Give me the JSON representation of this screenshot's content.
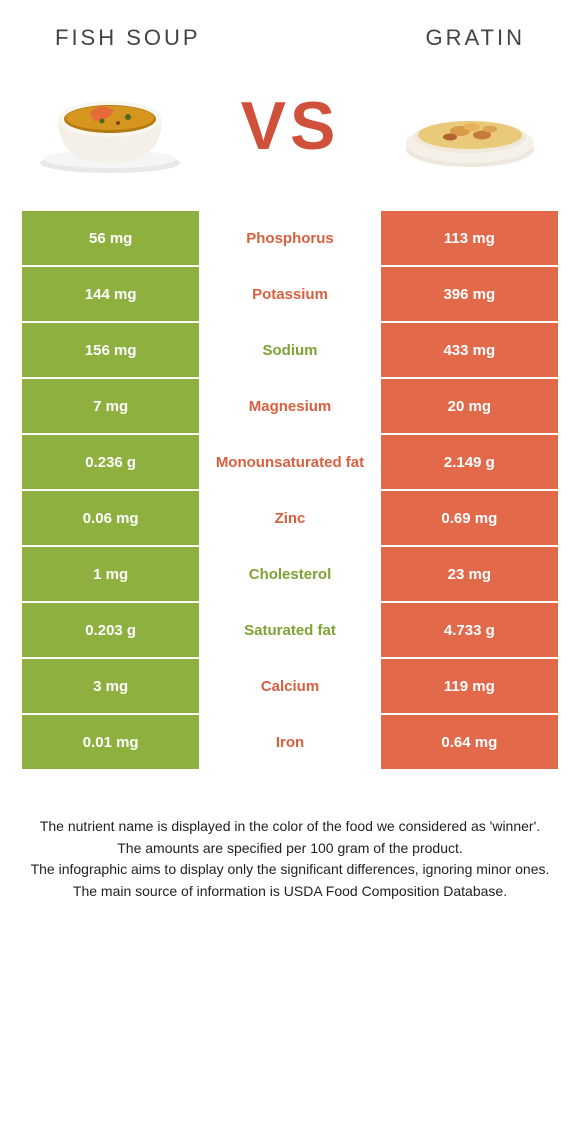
{
  "colors": {
    "green": "#8eb03f",
    "orange": "#e2694a",
    "white": "#ffffff",
    "vs": "#cf513b",
    "orange_text": "#d8603f",
    "green_text": "#7fa234"
  },
  "header": {
    "left_title": "FISH SOUP",
    "right_title": "GRATIN",
    "vs": "VS"
  },
  "rows": [
    {
      "left": "56 mg",
      "label": "Phosphorus",
      "right": "113 mg",
      "label_color": "orange"
    },
    {
      "left": "144 mg",
      "label": "Potassium",
      "right": "396 mg",
      "label_color": "orange"
    },
    {
      "left": "156 mg",
      "label": "Sodium",
      "right": "433 mg",
      "label_color": "green"
    },
    {
      "left": "7 mg",
      "label": "Magnesium",
      "right": "20 mg",
      "label_color": "orange"
    },
    {
      "left": "0.236 g",
      "label": "Monounsaturated fat",
      "right": "2.149 g",
      "label_color": "orange"
    },
    {
      "left": "0.06 mg",
      "label": "Zinc",
      "right": "0.69 mg",
      "label_color": "orange"
    },
    {
      "left": "1 mg",
      "label": "Cholesterol",
      "right": "23 mg",
      "label_color": "green"
    },
    {
      "left": "0.203 g",
      "label": "Saturated fat",
      "right": "4.733 g",
      "label_color": "green"
    },
    {
      "left": "3 mg",
      "label": "Calcium",
      "right": "119 mg",
      "label_color": "orange"
    },
    {
      "left": "0.01 mg",
      "label": "Iron",
      "right": "0.64 mg",
      "label_color": "orange"
    }
  ],
  "footer": {
    "line1": "The nutrient name is displayed in the color of the food we considered as 'winner'.",
    "line2": "The amounts are specified per 100 gram of the product.",
    "line3": "The infographic aims to display only the significant differences, ignoring minor ones.",
    "line4": "The main source of information is USDA Food Composition Database."
  }
}
